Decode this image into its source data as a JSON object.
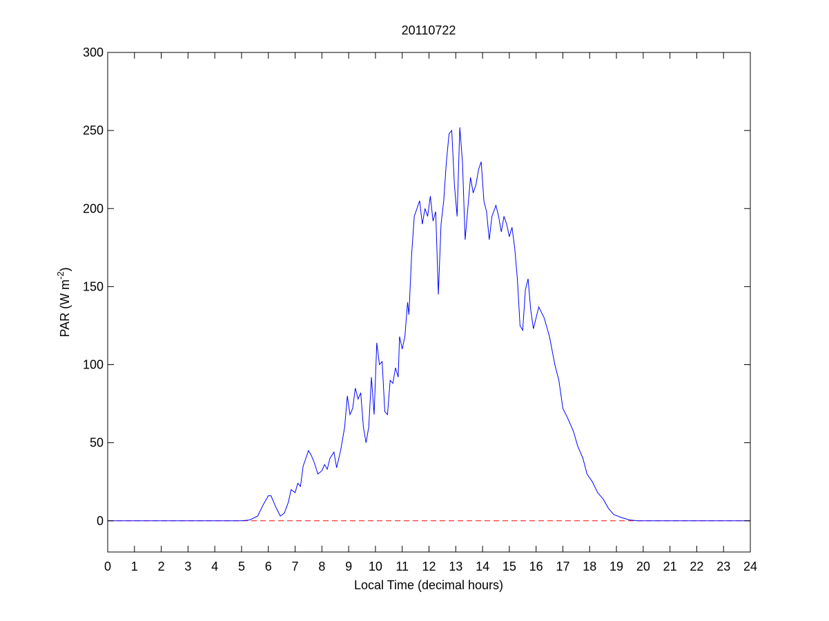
{
  "chart_data": {
    "type": "line",
    "title": "20110722",
    "xlabel": "Local Time (decimal hours)",
    "ylabel": {
      "text": "PAR (W m",
      "superscript": "-2",
      "suffix": ")"
    },
    "xlim": [
      0,
      24
    ],
    "xticks": [
      0,
      1,
      2,
      3,
      4,
      5,
      6,
      7,
      8,
      9,
      10,
      11,
      12,
      13,
      14,
      15,
      16,
      17,
      18,
      19,
      20,
      21,
      22,
      23,
      24
    ],
    "ylim": [
      -20,
      300
    ],
    "yticks": [
      0,
      50,
      100,
      150,
      200,
      250,
      300
    ],
    "reference_line": {
      "value": 0,
      "color": "#ff0000",
      "style": "dashed"
    },
    "series": [
      {
        "color": "#0000ff",
        "x": [
          0,
          5.0,
          5.3,
          5.6,
          5.8,
          6.0,
          6.1,
          6.3,
          6.45,
          6.6,
          6.75,
          6.85,
          7.0,
          7.1,
          7.2,
          7.3,
          7.4,
          7.5,
          7.6,
          7.7,
          7.85,
          8.0,
          8.1,
          8.2,
          8.3,
          8.45,
          8.55,
          8.7,
          8.85,
          8.95,
          9.05,
          9.15,
          9.25,
          9.35,
          9.45,
          9.55,
          9.65,
          9.75,
          9.85,
          9.95,
          10.05,
          10.15,
          10.25,
          10.35,
          10.45,
          10.55,
          10.65,
          10.75,
          10.85,
          10.9,
          11.0,
          11.1,
          11.2,
          11.25,
          11.35,
          11.45,
          11.55,
          11.65,
          11.75,
          11.85,
          11.95,
          12.05,
          12.15,
          12.25,
          12.35,
          12.45,
          12.55,
          12.65,
          12.75,
          12.85,
          12.95,
          13.05,
          13.15,
          13.25,
          13.35,
          13.45,
          13.55,
          13.65,
          13.75,
          13.85,
          13.95,
          14.05,
          14.15,
          14.25,
          14.35,
          14.5,
          14.6,
          14.7,
          14.8,
          14.9,
          15.0,
          15.1,
          15.2,
          15.3,
          15.4,
          15.5,
          15.6,
          15.7,
          15.8,
          15.9,
          16.0,
          16.1,
          16.3,
          16.5,
          16.7,
          16.85,
          17.0,
          17.2,
          17.4,
          17.55,
          17.75,
          17.9,
          18.1,
          18.3,
          18.5,
          18.7,
          18.9,
          19.2,
          19.5,
          19.8,
          24
        ],
        "values": [
          0,
          0,
          0.5,
          3,
          10,
          16,
          16,
          8,
          3,
          5,
          12,
          20,
          18,
          24,
          22,
          35,
          40,
          45,
          42,
          38,
          30,
          32,
          36,
          33,
          40,
          44,
          34,
          45,
          60,
          80,
          68,
          72,
          85,
          78,
          82,
          60,
          50,
          60,
          92,
          68,
          114,
          100,
          102,
          70,
          68,
          90,
          88,
          98,
          92,
          118,
          110,
          118,
          140,
          132,
          170,
          195,
          200,
          205,
          190,
          200,
          195,
          208,
          192,
          198,
          145,
          190,
          205,
          230,
          248,
          250,
          215,
          195,
          252,
          230,
          180,
          200,
          220,
          210,
          215,
          225,
          230,
          205,
          198,
          180,
          195,
          202,
          195,
          185,
          195,
          190,
          182,
          188,
          175,
          155,
          125,
          122,
          148,
          155,
          135,
          123,
          130,
          137,
          130,
          118,
          100,
          90,
          72,
          65,
          57,
          48,
          40,
          30,
          25,
          18,
          14,
          8,
          4,
          2,
          0.5,
          0,
          0
        ]
      }
    ]
  }
}
